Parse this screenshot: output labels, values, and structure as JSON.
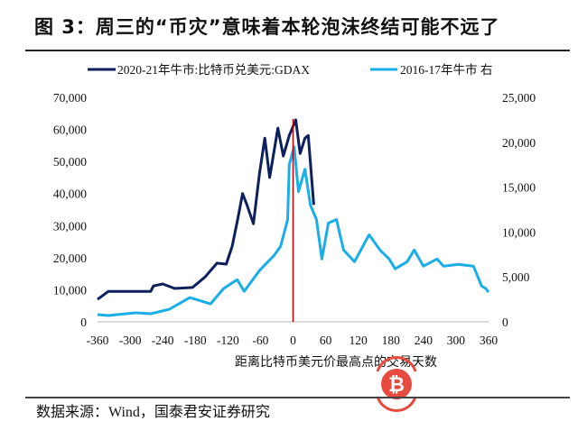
{
  "title": "图 3：周三的“币灾”意味着本轮泡沫终结可能不远了",
  "source": "数据来源：Wind，国泰君安证券研究",
  "watermark": "₿",
  "chart_data": {
    "type": "line",
    "title": "图 3：周三的“币灾”意味着本轮泡沫终结可能不远了",
    "xlabel": "距离比特币美元价最高点的交易天数",
    "xlim": [
      -360,
      360
    ],
    "xticks": [
      -360,
      -300,
      -240,
      -180,
      -120,
      -60,
      0,
      60,
      120,
      180,
      240,
      300,
      360
    ],
    "xtick_labels": [
      "-360",
      "-300",
      "-240",
      "-180",
      "-120",
      "-60",
      "0",
      "60",
      "120",
      "180",
      "240",
      "300",
      "360"
    ],
    "y_left": {
      "lim": [
        0,
        70000
      ],
      "tick_labels": [
        "0",
        "10,000",
        "20,000",
        "30,000",
        "40,000",
        "50,000",
        "60,000",
        "70,000"
      ],
      "ticks": [
        0,
        10000,
        20000,
        30000,
        40000,
        50000,
        60000,
        70000
      ]
    },
    "y_right": {
      "lim": [
        0,
        25000
      ],
      "tick_labels": [
        "0",
        "5,000",
        "10,000",
        "15,000",
        "20,000",
        "25,000"
      ],
      "ticks": [
        0,
        5000,
        10000,
        15000,
        20000,
        25000
      ]
    },
    "grid": false,
    "legend_position": "top",
    "reference_line": {
      "x": 0,
      "color": "#C00000"
    },
    "series": [
      {
        "name": "2020-21年牛市:比特币兑美元:GDAX",
        "axis": "left",
        "color": "#0D1F5C",
        "x": [
          -360,
          -340,
          -262,
          -257,
          -240,
          -218,
          -185,
          -162,
          -140,
          -123,
          -112,
          -102,
          -93,
          -85,
          -73,
          -62,
          -52,
          -43,
          -28,
          -18,
          -7,
          5,
          13,
          22,
          28,
          32,
          38
        ],
        "y": [
          7000,
          9500,
          9500,
          11200,
          11800,
          10400,
          10700,
          14000,
          18300,
          18000,
          23600,
          32000,
          40000,
          36500,
          30600,
          46000,
          57300,
          45000,
          60400,
          51700,
          58100,
          63000,
          52500,
          57300,
          58100,
          49700,
          36500
        ]
      },
      {
        "name": "2016-17年牛市  右",
        "axis": "right",
        "color": "#1AAEE8",
        "x": [
          -360,
          -340,
          -290,
          -262,
          -228,
          -190,
          -152,
          -128,
          -103,
          -90,
          -62,
          -35,
          -23,
          -10,
          -7,
          2,
          10,
          22,
          32,
          43,
          53,
          65,
          80,
          93,
          113,
          140,
          160,
          177,
          188,
          210,
          223,
          240,
          265,
          277,
          305,
          332,
          347,
          355,
          360
        ],
        "y": [
          800,
          700,
          1000,
          900,
          1400,
          2700,
          2000,
          3700,
          4700,
          3400,
          5700,
          7400,
          8400,
          11400,
          17500,
          19500,
          14500,
          17000,
          13000,
          11400,
          7000,
          11000,
          11400,
          8000,
          6700,
          9700,
          8000,
          7000,
          5900,
          6700,
          8000,
          6200,
          7000,
          6200,
          6400,
          6200,
          4000,
          3700,
          3300
        ]
      }
    ]
  }
}
